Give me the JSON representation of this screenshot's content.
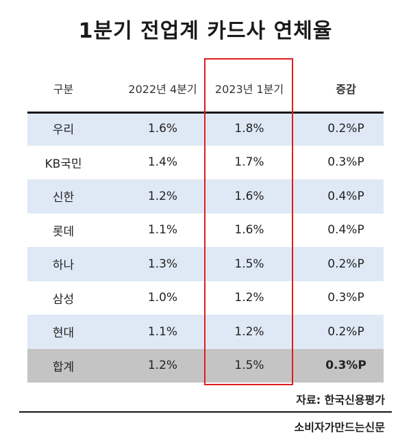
{
  "title": "1분기 전업계 카드사 연체율",
  "chart_data": {
    "type": "table",
    "columns": [
      "구분",
      "2022년 4분기",
      "2023년 1분기",
      "증감"
    ],
    "rows": [
      [
        "우리",
        "1.6%",
        "1.8%",
        "0.2%P"
      ],
      [
        "KB국민",
        "1.4%",
        "1.7%",
        "0.3%P"
      ],
      [
        "신한",
        "1.2%",
        "1.6%",
        "0.4%P"
      ],
      [
        "롯데",
        "1.1%",
        "1.6%",
        "0.4%P"
      ],
      [
        "하나",
        "1.3%",
        "1.5%",
        "0.2%P"
      ],
      [
        "삼성",
        "1.0%",
        "1.2%",
        "0.3%P"
      ],
      [
        "현대",
        "1.1%",
        "1.2%",
        "0.2%P"
      ],
      [
        "합계",
        "1.2%",
        "1.5%",
        "0.3%P"
      ]
    ],
    "highlighted_column": "2023년 1분기",
    "colors": {
      "shade": "#dfe9f5",
      "total": "#c4c4c4",
      "highlight": "#e01b1b"
    }
  },
  "source": "자료: 한국신용평가",
  "brand": "소비자가만드는신문"
}
